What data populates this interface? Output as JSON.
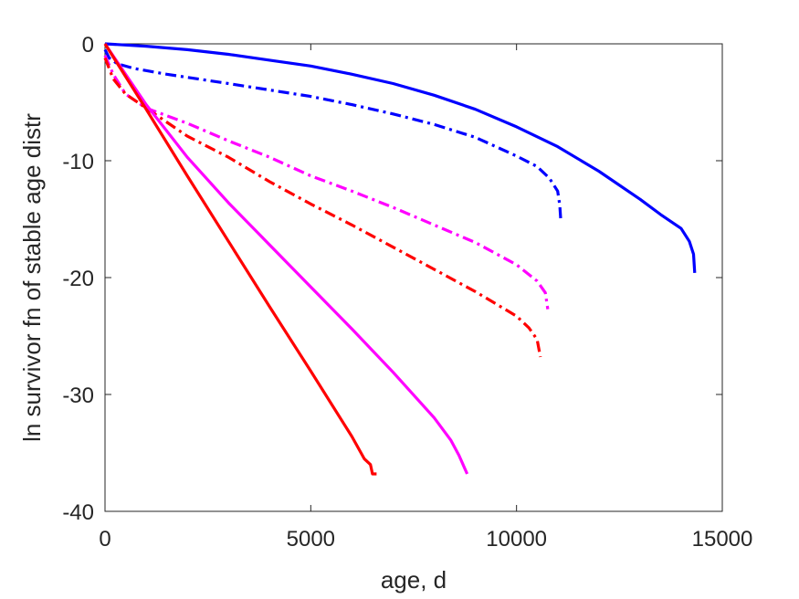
{
  "chart_data": {
    "type": "line",
    "title": "",
    "xlabel": "age, d",
    "ylabel": "ln survivor fn of stable age distr",
    "xlim": [
      0,
      15000
    ],
    "ylim": [
      -40,
      0
    ],
    "xticks": [
      0,
      5000,
      10000,
      15000
    ],
    "yticks": [
      -40,
      -30,
      -20,
      -10,
      0
    ],
    "xtick_labels": [
      "0",
      "5000",
      "10000",
      "15000"
    ],
    "ytick_labels": [
      "-40",
      "-30",
      "-20",
      "-10",
      "0"
    ],
    "grid": false,
    "legend": false,
    "series": [
      {
        "color": "#0000ff",
        "style": "solid",
        "x": [
          0,
          1000,
          2000,
          3000,
          4000,
          5000,
          6000,
          7000,
          8000,
          9000,
          10000,
          11000,
          12000,
          13000,
          13500,
          14000,
          14200,
          14300,
          14330
        ],
        "y": [
          0,
          -0.2,
          -0.5,
          -0.9,
          -1.4,
          -1.9,
          -2.6,
          -3.4,
          -4.4,
          -5.6,
          -7.1,
          -8.8,
          -10.9,
          -13.3,
          -14.6,
          -15.8,
          -16.9,
          -18.0,
          -19.6
        ]
      },
      {
        "color": "#0000ff",
        "style": "dashdot",
        "x": [
          0,
          100,
          300,
          700,
          1500,
          3000,
          5000,
          6000,
          7000,
          8000,
          9000,
          10000,
          10500,
          10800,
          11000,
          11050,
          11080
        ],
        "y": [
          -0.5,
          -1.2,
          -1.7,
          -2.1,
          -2.6,
          -3.4,
          -4.5,
          -5.2,
          -6.0,
          -6.9,
          -8.0,
          -9.6,
          -10.5,
          -11.5,
          -12.6,
          -13.8,
          -15.3
        ]
      },
      {
        "color": "#ff00ff",
        "style": "dashdot",
        "x": [
          0,
          200,
          500,
          1000,
          2000,
          3000,
          4000,
          5000,
          6000,
          7000,
          8000,
          9000,
          10000,
          10500,
          10700,
          10760
        ],
        "y": [
          -1.0,
          -2.6,
          -4.3,
          -5.5,
          -6.8,
          -8.3,
          -9.7,
          -11.3,
          -12.6,
          -14.0,
          -15.5,
          -17.0,
          -18.9,
          -20.3,
          -21.3,
          -22.7
        ]
      },
      {
        "color": "#ff0000",
        "style": "dashdot",
        "x": [
          0,
          200,
          500,
          1000,
          2000,
          3000,
          4000,
          5000,
          6000,
          7000,
          8000,
          9000,
          10000,
          10300,
          10500,
          10580
        ],
        "y": [
          -1.2,
          -3.0,
          -4.3,
          -5.5,
          -7.9,
          -9.7,
          -11.8,
          -13.7,
          -15.5,
          -17.4,
          -19.3,
          -21.2,
          -23.3,
          -24.3,
          -25.3,
          -26.8
        ]
      },
      {
        "color": "#ff00ff",
        "style": "solid",
        "x": [
          0,
          500,
          1000,
          2000,
          3000,
          4000,
          5000,
          6000,
          7000,
          8000,
          8400,
          8600,
          8700,
          8800
        ],
        "y": [
          0,
          -2.6,
          -5.2,
          -9.7,
          -13.6,
          -17.2,
          -20.8,
          -24.4,
          -28.1,
          -32.0,
          -33.9,
          -35.2,
          -36.0,
          -36.8
        ]
      },
      {
        "color": "#ff0000",
        "style": "solid",
        "x": [
          0,
          500,
          1000,
          2000,
          3000,
          4000,
          5000,
          6000,
          6300,
          6450,
          6500,
          6600
        ],
        "y": [
          0,
          -2.8,
          -5.6,
          -11.3,
          -16.9,
          -22.5,
          -28.0,
          -33.6,
          -35.5,
          -36.0,
          -36.8,
          -36.8
        ]
      }
    ]
  }
}
